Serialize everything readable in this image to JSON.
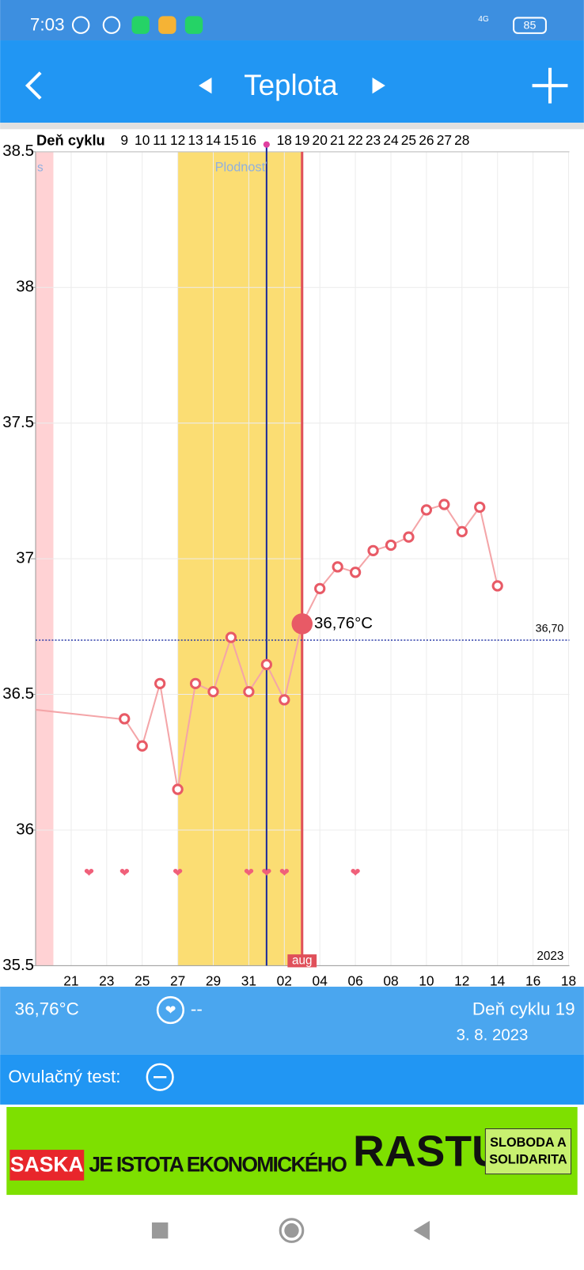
{
  "status_bar": {
    "time": "7:03",
    "network": "4G",
    "battery": "85"
  },
  "header": {
    "title": "Teplota"
  },
  "chart_data": {
    "type": "line",
    "header_label": "Deň cyklu",
    "cycle_days": [
      null,
      null,
      null,
      null,
      null,
      "9",
      "10",
      "11",
      "12",
      "13",
      "14",
      "15",
      "16",
      null,
      "18",
      "19",
      "20",
      "21",
      "22",
      "23",
      "24",
      "25",
      "26",
      "27",
      "28",
      null,
      null,
      null,
      null,
      null,
      null
    ],
    "categories": [
      null,
      null,
      "21",
      null,
      "23",
      null,
      "25",
      null,
      "27",
      null,
      "29",
      null,
      "31",
      null,
      "02",
      null,
      "04",
      null,
      "06",
      null,
      "08",
      null,
      "10",
      null,
      "12",
      null,
      "14",
      null,
      "16",
      null,
      "18"
    ],
    "month_label": "aug",
    "year_label": "2023",
    "fertile_label": "Plodnosť",
    "period_label": "s",
    "series": [
      {
        "color": "#e85a66",
        "values": [
          null,
          null,
          null,
          null,
          null,
          36.41,
          36.31,
          36.54,
          36.15,
          36.54,
          36.51,
          36.71,
          36.51,
          36.61,
          36.48,
          36.76,
          36.89,
          36.97,
          36.95,
          37.03,
          37.05,
          37.08,
          37.18,
          37.2,
          37.1,
          37.19,
          36.9,
          null,
          null,
          null,
          null
        ],
        "value_labels": [
          null,
          null,
          null,
          null,
          null,
          null,
          null,
          null,
          null,
          null,
          null,
          null,
          null,
          null,
          null,
          "36,76°C",
          null,
          null,
          null,
          null,
          null,
          null,
          null,
          null,
          null,
          null,
          null,
          null,
          null,
          null,
          null
        ]
      }
    ],
    "ylim": [
      35.5,
      38.5
    ],
    "yticks": [
      35.5,
      36,
      36.5,
      37,
      37.5,
      38,
      38.5
    ],
    "grid": true,
    "reference_line": {
      "value": 36.7,
      "label": "36,70"
    }
  },
  "info": {
    "temperature": "36,76°C",
    "heart": "--",
    "cycle_day": "Deň cyklu 19",
    "date": "3. 8. 2023"
  },
  "ovulation_test": {
    "label": "Ovulačný test:"
  },
  "ad": {
    "brand": "SASKA",
    "text": "JE ISTOTA EKONOMICKÉHO",
    "text_big": "RASTU",
    "badge_line1": "SLOBODA A",
    "badge_line2": "SOLIDARITA"
  }
}
